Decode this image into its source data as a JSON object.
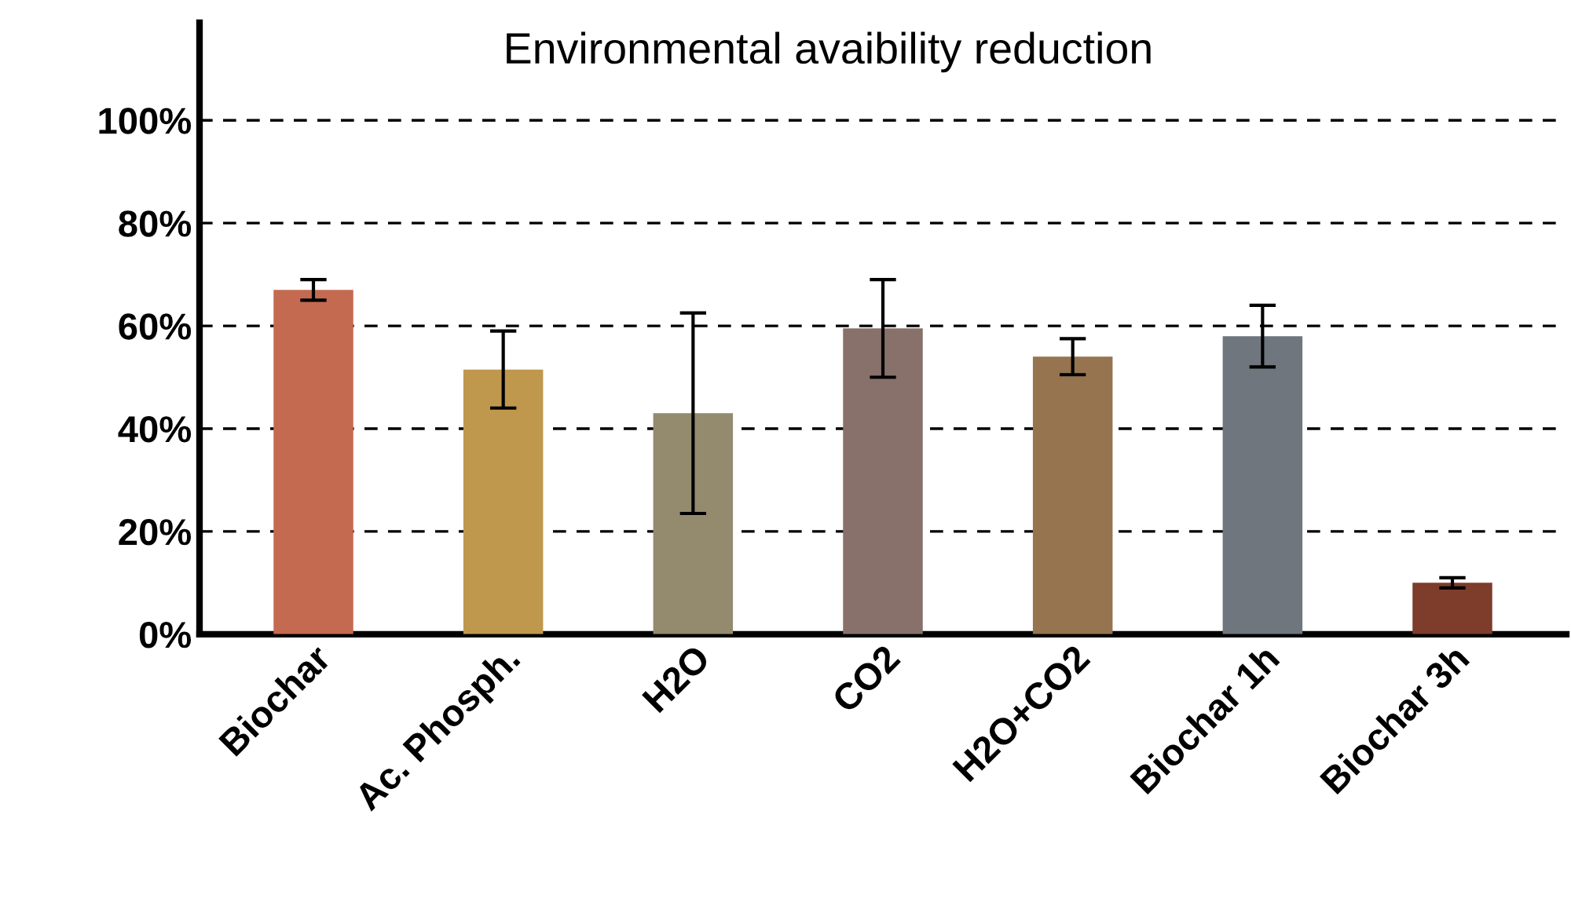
{
  "chart_data": {
    "type": "bar",
    "title": "Environmental avaibility reduction",
    "categories": [
      "Biochar",
      "Ac. Phosph.",
      "H2O",
      "CO2",
      "H2O+CO2",
      "Biochar 1h",
      "Biochar 3h"
    ],
    "values": [
      67,
      51.5,
      43,
      59.5,
      54,
      58,
      10
    ],
    "errors": [
      2,
      7.5,
      19.5,
      9.5,
      3.5,
      6,
      1
    ],
    "colors": [
      "#c46a50",
      "#bf984d",
      "#948b6f",
      "#88716b",
      "#95744f",
      "#6f767d",
      "#7e3c2b"
    ],
    "ylim": [
      0,
      119
    ],
    "yticks": [
      {
        "value": 0,
        "label": "0%"
      },
      {
        "value": 20,
        "label": "20%"
      },
      {
        "value": 40,
        "label": "40%"
      },
      {
        "value": 60,
        "label": "60%"
      },
      {
        "value": 80,
        "label": "80%"
      },
      {
        "value": 100,
        "label": "100%"
      }
    ],
    "grid": "y"
  }
}
